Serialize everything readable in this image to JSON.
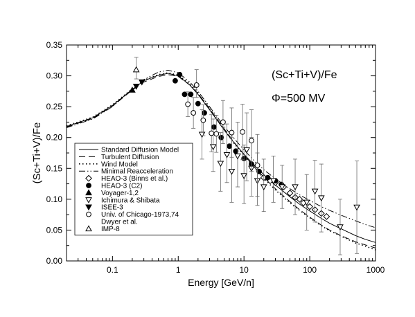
{
  "chart_data": {
    "type": "line",
    "xscale": "log",
    "xlabel": "Energy [GeV/n]",
    "ylabel": "(Sc+Ti+V)/Fe",
    "xlim": [
      0.02,
      1000
    ],
    "ylim": [
      0.0,
      0.35
    ],
    "grid": false,
    "legend_position": "bottom-left",
    "annotations": [
      "(Sc+Ti+V)/Fe",
      "Φ=500 MV"
    ],
    "x_ticks": [
      {
        "value": 0.1,
        "label": "0.1"
      },
      {
        "value": 1,
        "label": "1"
      },
      {
        "value": 10,
        "label": "10"
      },
      {
        "value": 100,
        "label": "100"
      },
      {
        "value": 1000,
        "label": "1000"
      }
    ],
    "y_ticks": [
      {
        "value": 0.0,
        "label": "0.00"
      },
      {
        "value": 0.05,
        "label": "0.05"
      },
      {
        "value": 0.1,
        "label": "0.10"
      },
      {
        "value": 0.15,
        "label": "0.15"
      },
      {
        "value": 0.2,
        "label": "0.20"
      },
      {
        "value": 0.25,
        "label": "0.25"
      },
      {
        "value": 0.3,
        "label": "0.30"
      },
      {
        "value": 0.35,
        "label": "0.35"
      }
    ],
    "series": [
      {
        "name": "Standard Diffusion Model",
        "style": "solid",
        "points": [
          [
            0.02,
            0.218
          ],
          [
            0.05,
            0.232
          ],
          [
            0.1,
            0.252
          ],
          [
            0.2,
            0.278
          ],
          [
            0.3,
            0.292
          ],
          [
            0.5,
            0.301
          ],
          [
            0.7,
            0.304
          ],
          [
            1,
            0.3
          ],
          [
            1.5,
            0.285
          ],
          [
            2,
            0.27
          ],
          [
            3,
            0.245
          ],
          [
            5,
            0.212
          ],
          [
            7,
            0.192
          ],
          [
            10,
            0.173
          ],
          [
            15,
            0.153
          ],
          [
            20,
            0.14
          ],
          [
            30,
            0.123
          ],
          [
            50,
            0.104
          ],
          [
            70,
            0.092
          ],
          [
            100,
            0.081
          ],
          [
            150,
            0.069
          ],
          [
            200,
            0.061
          ],
          [
            300,
            0.052
          ],
          [
            500,
            0.041
          ],
          [
            700,
            0.035
          ],
          [
            1000,
            0.03
          ]
        ]
      },
      {
        "name": "Turbulent Diffusion",
        "style": "dashed",
        "points": [
          [
            0.02,
            0.217
          ],
          [
            0.05,
            0.231
          ],
          [
            0.1,
            0.251
          ],
          [
            0.2,
            0.277
          ],
          [
            0.3,
            0.29
          ],
          [
            0.5,
            0.299
          ],
          [
            0.7,
            0.302
          ],
          [
            1,
            0.299
          ],
          [
            1.5,
            0.285
          ],
          [
            2,
            0.271
          ],
          [
            3,
            0.247
          ],
          [
            5,
            0.214
          ],
          [
            7,
            0.193
          ],
          [
            10,
            0.172
          ],
          [
            15,
            0.15
          ],
          [
            20,
            0.136
          ],
          [
            30,
            0.117
          ],
          [
            50,
            0.096
          ],
          [
            70,
            0.083
          ],
          [
            100,
            0.071
          ],
          [
            150,
            0.058
          ],
          [
            200,
            0.05
          ],
          [
            300,
            0.041
          ],
          [
            500,
            0.031
          ],
          [
            700,
            0.026
          ],
          [
            1000,
            0.021
          ]
        ]
      },
      {
        "name": "Wind Model",
        "style": "dotted",
        "points": [
          [
            0.02,
            0.219
          ],
          [
            0.05,
            0.233
          ],
          [
            0.1,
            0.253
          ],
          [
            0.2,
            0.279
          ],
          [
            0.3,
            0.293
          ],
          [
            0.5,
            0.302
          ],
          [
            0.7,
            0.305
          ],
          [
            1,
            0.301
          ],
          [
            1.5,
            0.287
          ],
          [
            2,
            0.272
          ],
          [
            3,
            0.247
          ],
          [
            5,
            0.213
          ],
          [
            7,
            0.191
          ],
          [
            10,
            0.171
          ],
          [
            15,
            0.149
          ],
          [
            20,
            0.134
          ],
          [
            30,
            0.115
          ],
          [
            50,
            0.094
          ],
          [
            70,
            0.082
          ],
          [
            100,
            0.07
          ],
          [
            150,
            0.057
          ],
          [
            200,
            0.049
          ],
          [
            300,
            0.04
          ],
          [
            500,
            0.029
          ],
          [
            700,
            0.024
          ],
          [
            1000,
            0.018
          ]
        ]
      },
      {
        "name": "Minimal Reacceleration",
        "style": "dashdotdot",
        "points": [
          [
            0.02,
            0.216
          ],
          [
            0.05,
            0.23
          ],
          [
            0.1,
            0.25
          ],
          [
            0.2,
            0.278
          ],
          [
            0.3,
            0.294
          ],
          [
            0.5,
            0.306
          ],
          [
            0.7,
            0.309
          ],
          [
            1,
            0.305
          ],
          [
            1.5,
            0.29
          ],
          [
            2,
            0.275
          ],
          [
            3,
            0.25
          ],
          [
            5,
            0.218
          ],
          [
            7,
            0.199
          ],
          [
            10,
            0.18
          ],
          [
            15,
            0.16
          ],
          [
            20,
            0.148
          ],
          [
            30,
            0.133
          ],
          [
            50,
            0.117
          ],
          [
            70,
            0.107
          ],
          [
            100,
            0.098
          ],
          [
            150,
            0.088
          ],
          [
            200,
            0.082
          ],
          [
            300,
            0.074
          ],
          [
            500,
            0.065
          ],
          [
            700,
            0.059
          ],
          [
            1000,
            0.054
          ]
        ]
      }
    ],
    "datasets": [
      {
        "name": "HEAO-3 (Binns et al.)",
        "marker": "diamond-open",
        "points": [
          [
            20,
            0.135
          ],
          [
            25,
            0.13
          ],
          [
            30,
            0.127
          ],
          [
            40,
            0.12
          ],
          [
            50,
            0.11
          ],
          [
            60,
            0.103
          ],
          [
            70,
            0.1
          ],
          [
            80,
            0.094
          ],
          [
            100,
            0.088
          ],
          [
            120,
            0.083
          ],
          [
            150,
            0.077
          ],
          [
            180,
            0.072
          ]
        ]
      },
      {
        "name": "HEAO-3 (C2)",
        "marker": "circle-filled",
        "points": [
          [
            0.9,
            0.292
          ],
          [
            1.05,
            0.302
          ],
          [
            1.25,
            0.27
          ],
          [
            1.55,
            0.27
          ],
          [
            2.0,
            0.255
          ],
          [
            2.5,
            0.24
          ],
          [
            3.5,
            0.217
          ],
          [
            4.5,
            0.2
          ],
          [
            6,
            0.186
          ],
          [
            7.5,
            0.178
          ],
          [
            10,
            0.166
          ],
          [
            13,
            0.157
          ],
          [
            17,
            0.145
          ],
          [
            23,
            0.135
          ],
          [
            30,
            0.13
          ],
          [
            37,
            0.124
          ]
        ]
      },
      {
        "name": "Voyager-1,2",
        "marker": "triangle-up-filled",
        "points": [
          [
            0.2,
            0.277
          ]
        ]
      },
      {
        "name": "Ichimura & Shibata",
        "marker": "triangle-down-open",
        "points": [
          [
            2.3,
            0.205
          ],
          [
            3.4,
            0.185
          ],
          [
            4.4,
            0.158
          ],
          [
            5.5,
            0.172
          ],
          [
            6.5,
            0.145
          ],
          [
            8,
            0.17
          ],
          [
            10,
            0.138
          ],
          [
            11,
            0.18
          ],
          [
            13,
            0.15
          ],
          [
            16,
            0.13
          ],
          [
            20,
            0.12
          ],
          [
            28,
            0.13
          ],
          [
            38,
            0.12
          ],
          [
            60,
            0.12
          ],
          [
            90,
            0.095
          ],
          [
            120,
            0.113
          ],
          [
            150,
            0.102
          ],
          [
            290,
            0.055
          ],
          [
            520,
            0.087
          ]
        ],
        "errors": [
          [
            0.04,
            0.04
          ],
          [
            0.04,
            0.045
          ],
          [
            0.045,
            0.05
          ],
          [
            0.045,
            0.05
          ],
          [
            0.05,
            0.055
          ],
          [
            0.05,
            0.055
          ],
          [
            0.045,
            0.05
          ],
          [
            0.05,
            0.06
          ],
          [
            0.045,
            0.05
          ],
          [
            0.04,
            0.045
          ],
          [
            0.04,
            0.045
          ],
          [
            0.035,
            0.04
          ],
          [
            0.035,
            0.035
          ],
          [
            0.045,
            0.045
          ],
          [
            0.045,
            0.045
          ],
          [
            0.05,
            0.05
          ],
          [
            0.055,
            0.055
          ],
          [
            0.045,
            0.045
          ],
          [
            0.075,
            0.075
          ]
        ]
      },
      {
        "name": "ISEE-3",
        "marker": "triangle-down-filled",
        "points": [
          [
            0.23,
            0.283
          ],
          [
            0.28,
            0.29
          ]
        ]
      },
      {
        "name": "Univ. of Chicago-1973,74",
        "marker": "circle-open",
        "points": [
          [
            1.4,
            0.254
          ],
          [
            1.7,
            0.24
          ],
          [
            1.9,
            0.285
          ],
          [
            2.4,
            0.228
          ],
          [
            3.2,
            0.207
          ],
          [
            3.8,
            0.206
          ],
          [
            4.8,
            0.225
          ],
          [
            6.5,
            0.208
          ],
          [
            9.5,
            0.209
          ],
          [
            13,
            0.195
          ],
          [
            16,
            0.155
          ]
        ],
        "errors": [
          [
            0.02,
            0.02
          ],
          [
            0.025,
            0.025
          ],
          [
            0.02,
            0.025
          ],
          [
            0.025,
            0.025
          ],
          [
            0.03,
            0.03
          ],
          [
            0.03,
            0.03
          ],
          [
            0.035,
            0.035
          ],
          [
            0.04,
            0.04
          ],
          [
            0.045,
            0.045
          ],
          [
            0.05,
            0.05
          ],
          [
            0.05,
            0.05
          ]
        ]
      },
      {
        "name": "Dwyer et al.",
        "marker": "none",
        "points": []
      },
      {
        "name": "IMP-8",
        "marker": "triangle-up-open",
        "points": [
          [
            0.23,
            0.31
          ]
        ],
        "errors": [
          [
            0.015,
            0.02
          ]
        ]
      }
    ]
  }
}
